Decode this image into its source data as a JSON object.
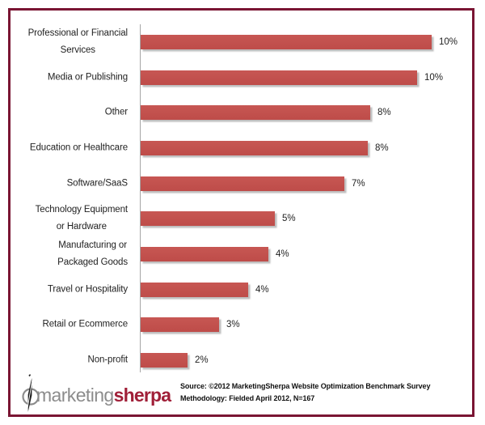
{
  "page": {
    "background": "#FFFFFF",
    "border_color": "#7A1533"
  },
  "chart_data": {
    "type": "bar",
    "orientation": "horizontal",
    "title": "",
    "xlabel": "",
    "ylabel": "",
    "grid": false,
    "legend": false,
    "xlim": [
      0,
      11
    ],
    "axis_line_color": "#A6A6A6",
    "bar_color": "#C0504D",
    "data_label_position": "outside-end",
    "categories": [
      "Professional or Financial\nServices",
      "Media or Publishing",
      "Other",
      "Education or Healthcare",
      "Software/SaaS",
      "Technology Equipment\nor Hardware",
      "Manufacturing or\nPackaged Goods",
      "Travel or Hospitality",
      "Retail or Ecommerce",
      "Non-profit"
    ],
    "values": [
      10,
      10,
      8,
      8,
      7,
      5,
      4,
      4,
      3,
      2
    ],
    "value_labels": [
      "10%",
      "10%",
      "8%",
      "8%",
      "7%",
      "5%",
      "4%",
      "4%",
      "3%",
      "2%"
    ],
    "values_precise_est": [
      10.0,
      9.5,
      7.9,
      7.8,
      7.0,
      4.6,
      4.4,
      3.7,
      2.7,
      1.6
    ]
  },
  "footer": {
    "logo": {
      "icon": "compass-icon",
      "part1": "marketing",
      "part2": "sherpa",
      "part1_color": "#8C8C8C",
      "part2_color": "#A01F38"
    },
    "source_line1": "Source: ©2012 MarketingSherpa Website Optimization Benchmark Survey",
    "source_line2": "Methodology: Fielded April 2012, N=167"
  }
}
